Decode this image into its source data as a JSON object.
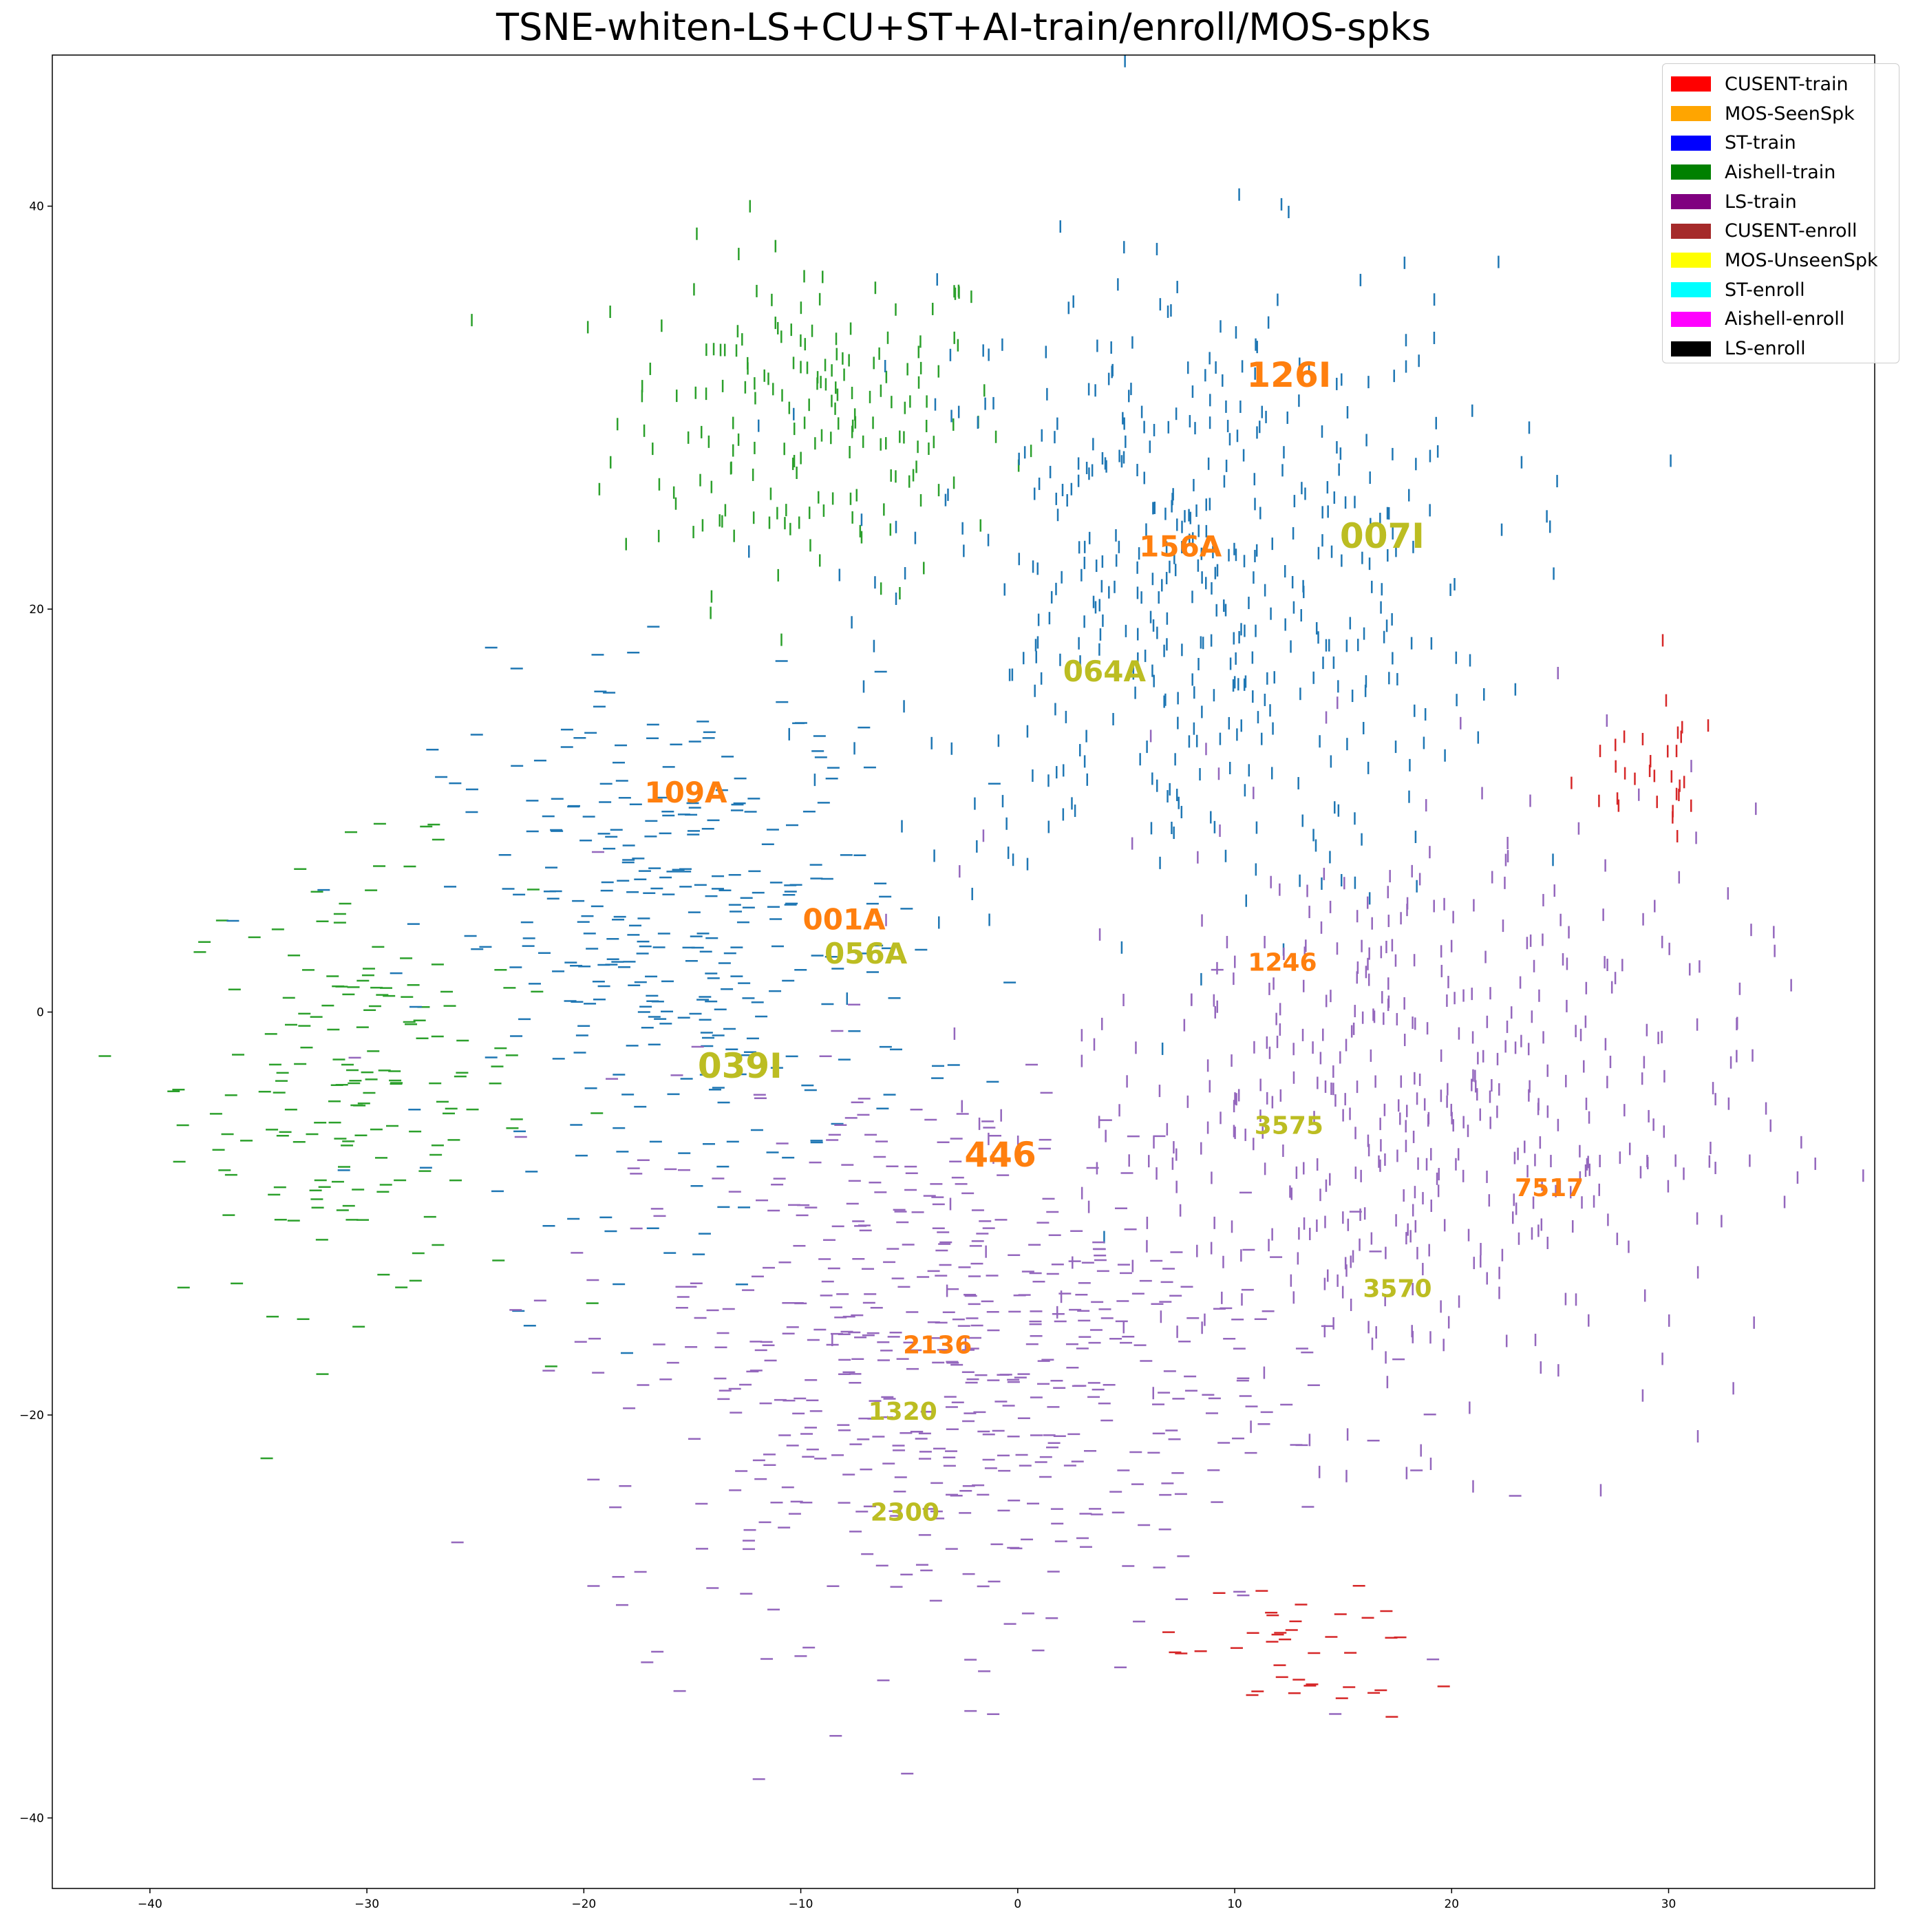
{
  "chart_data": {
    "type": "scatter",
    "title": "TSNE-whiten-LS+CU+ST+AI-train/enroll/MOS-spks",
    "xlabel": "",
    "ylabel": "",
    "xlim": [
      -44.5,
      39.5
    ],
    "ylim": [
      -43.5,
      47.5
    ],
    "x_ticks": [
      -40,
      -30,
      -20,
      -10,
      0,
      10,
      20,
      30
    ],
    "y_ticks": [
      -40,
      -20,
      0,
      20,
      40
    ],
    "grid": false,
    "legend_position": "top-right",
    "legend": [
      {
        "label": "CUSENT-train",
        "color": "#ff0000"
      },
      {
        "label": "MOS-SeenSpk",
        "color": "#ffa500"
      },
      {
        "label": "ST-train",
        "color": "#0000ff"
      },
      {
        "label": "Aishell-train",
        "color": "#008000"
      },
      {
        "label": "LS-train",
        "color": "#800080"
      },
      {
        "label": "CUSENT-enroll",
        "color": "#a52a2a"
      },
      {
        "label": "MOS-UnseenSpk",
        "color": "#ffff00"
      },
      {
        "label": "ST-enroll",
        "color": "#00ffff"
      },
      {
        "label": "Aishell-enroll",
        "color": "#ff00ff"
      },
      {
        "label": "LS-enroll",
        "color": "#000000"
      }
    ],
    "clusters": [
      {
        "group": "Aishell-train",
        "color": "#2ca02c",
        "orientation": "vertical",
        "cx": -9.5,
        "cy": 29.5,
        "sx": 4.5,
        "sy": 4.2,
        "count": 190
      },
      {
        "group": "Aishell-train",
        "color": "#2ca02c",
        "orientation": "horizontal",
        "cx": -30.5,
        "cy": -3.5,
        "sx": 4.0,
        "sy": 5.5,
        "count": 175
      },
      {
        "group": "ST-train",
        "color": "#1f77b4",
        "orientation": "vertical",
        "cx": 8.0,
        "cy": 21.0,
        "sx": 7.0,
        "sy": 8.0,
        "count": 480
      },
      {
        "group": "ST-train",
        "color": "#1f77b4",
        "orientation": "horizontal",
        "cx": -15.5,
        "cy": 3.5,
        "sx": 5.5,
        "sy": 6.5,
        "count": 330
      },
      {
        "group": "LS-train",
        "color": "#9467bd",
        "orientation": "vertical",
        "cx": 18.0,
        "cy": -5.0,
        "sx": 8.0,
        "sy": 7.5,
        "count": 520
      },
      {
        "group": "LS-train",
        "color": "#9467bd",
        "orientation": "horizontal",
        "cx": -3.5,
        "cy": -17.0,
        "sx": 8.0,
        "sy": 7.0,
        "count": 560
      },
      {
        "group": "CUSENT-train",
        "color": "#d62728",
        "orientation": "vertical",
        "cx": 29.0,
        "cy": 12.0,
        "sx": 2.0,
        "sy": 1.8,
        "count": 32
      },
      {
        "group": "CUSENT-train",
        "color": "#d62728",
        "orientation": "horizontal",
        "cx": 12.5,
        "cy": -32.0,
        "sx": 3.0,
        "sy": 1.8,
        "count": 40
      }
    ],
    "speaker_labels": [
      {
        "text": "126I",
        "x": 12.5,
        "y": 31.5,
        "color": "#ff7f0e",
        "size": 50
      },
      {
        "text": "156A",
        "x": 7.5,
        "y": 23.0,
        "color": "#ff7f0e",
        "size": 42
      },
      {
        "text": "007I",
        "x": 16.8,
        "y": 23.5,
        "color": "#bcbd22",
        "size": 50
      },
      {
        "text": "064A",
        "x": 4.0,
        "y": 16.8,
        "color": "#bcbd22",
        "size": 42
      },
      {
        "text": "109A",
        "x": -15.3,
        "y": 10.8,
        "color": "#ff7f0e",
        "size": 42
      },
      {
        "text": "001A",
        "x": -8.0,
        "y": 4.5,
        "color": "#ff7f0e",
        "size": 42
      },
      {
        "text": "056A",
        "x": -7.0,
        "y": 2.8,
        "color": "#bcbd22",
        "size": 42
      },
      {
        "text": "039I",
        "x": -12.8,
        "y": -2.8,
        "color": "#bcbd22",
        "size": 50
      },
      {
        "text": "1246",
        "x": 12.2,
        "y": 2.4,
        "color": "#ff7f0e",
        "size": 36
      },
      {
        "text": "3575",
        "x": 12.5,
        "y": -5.7,
        "color": "#bcbd22",
        "size": 36
      },
      {
        "text": "446",
        "x": -0.8,
        "y": -7.2,
        "color": "#ff7f0e",
        "size": 50
      },
      {
        "text": "7517",
        "x": 24.5,
        "y": -8.8,
        "color": "#ff7f0e",
        "size": 36
      },
      {
        "text": "3570",
        "x": 17.5,
        "y": -13.8,
        "color": "#bcbd22",
        "size": 36
      },
      {
        "text": "2136",
        "x": -3.7,
        "y": -16.6,
        "color": "#ff7f0e",
        "size": 36
      },
      {
        "text": "1320",
        "x": -5.3,
        "y": -19.9,
        "color": "#bcbd22",
        "size": 36
      },
      {
        "text": "2300",
        "x": -5.2,
        "y": -24.9,
        "color": "#bcbd22",
        "size": 36
      }
    ]
  }
}
